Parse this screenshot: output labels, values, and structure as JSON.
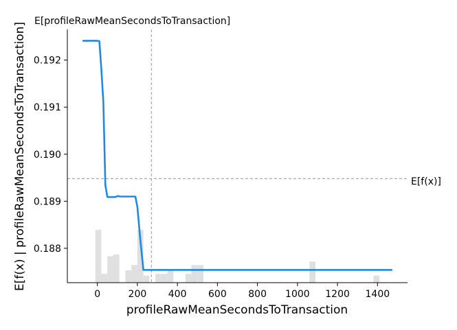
{
  "chart_data": {
    "type": "line",
    "title": "",
    "xlabel": "profileRawMeanSecondsToTransaction",
    "ylabel": "E[f(x) | profileRawMeanSecondsToTransaction]",
    "xlim": [
      -150,
      1550
    ],
    "ylim": [
      0.18727,
      0.19265
    ],
    "x_ticks": [
      0,
      200,
      400,
      600,
      800,
      1000,
      1200,
      1400
    ],
    "x_tick_labels": [
      "0",
      "200",
      "400",
      "600",
      "800",
      "1000",
      "1200",
      "1400"
    ],
    "y_ticks": [
      0.188,
      0.189,
      0.19,
      0.191,
      0.192
    ],
    "y_tick_labels": [
      "0.188",
      "0.189",
      "0.190",
      "0.191",
      "0.192"
    ],
    "grid": false,
    "series": [
      {
        "color": "#1e88e5",
        "x": [
          -70,
          0,
          10,
          20,
          30,
          40,
          50,
          60,
          75,
          90,
          100,
          120,
          150,
          190,
          200,
          215,
          230,
          240,
          260,
          300,
          400,
          600,
          800,
          1000,
          1200,
          1400,
          1470
        ],
        "y": [
          0.19241,
          0.19241,
          0.1924,
          0.1918,
          0.1911,
          0.18934,
          0.18909,
          0.18909,
          0.18909,
          0.18909,
          0.18911,
          0.1891,
          0.1891,
          0.1891,
          0.18888,
          0.18817,
          0.18754,
          0.18754,
          0.18754,
          0.18754,
          0.18754,
          0.18754,
          0.18754,
          0.18754,
          0.18754,
          0.18754,
          0.18754
        ]
      }
    ],
    "reference_lines": {
      "expected_value": 0.18948,
      "expected_value_label": "E[f(x)]",
      "feature_mean": 270,
      "feature_mean_label": "E[profileRawMeanSecondsToTransaction]",
      "color": "#999999"
    },
    "histogram": {
      "color": "#e0e0e0",
      "bin_edges": [
        -10,
        20,
        50,
        80,
        110,
        140,
        170,
        200,
        230,
        260,
        290,
        320,
        350,
        380,
        410,
        440,
        470,
        500,
        530,
        560,
        1060,
        1090,
        1380,
        1410
      ],
      "counts": [
        30,
        5,
        15,
        16,
        0,
        7,
        10,
        30,
        4,
        0,
        5,
        5,
        7,
        0,
        0,
        5,
        10,
        10,
        0,
        0,
        12,
        0,
        4,
        0
      ]
    }
  }
}
